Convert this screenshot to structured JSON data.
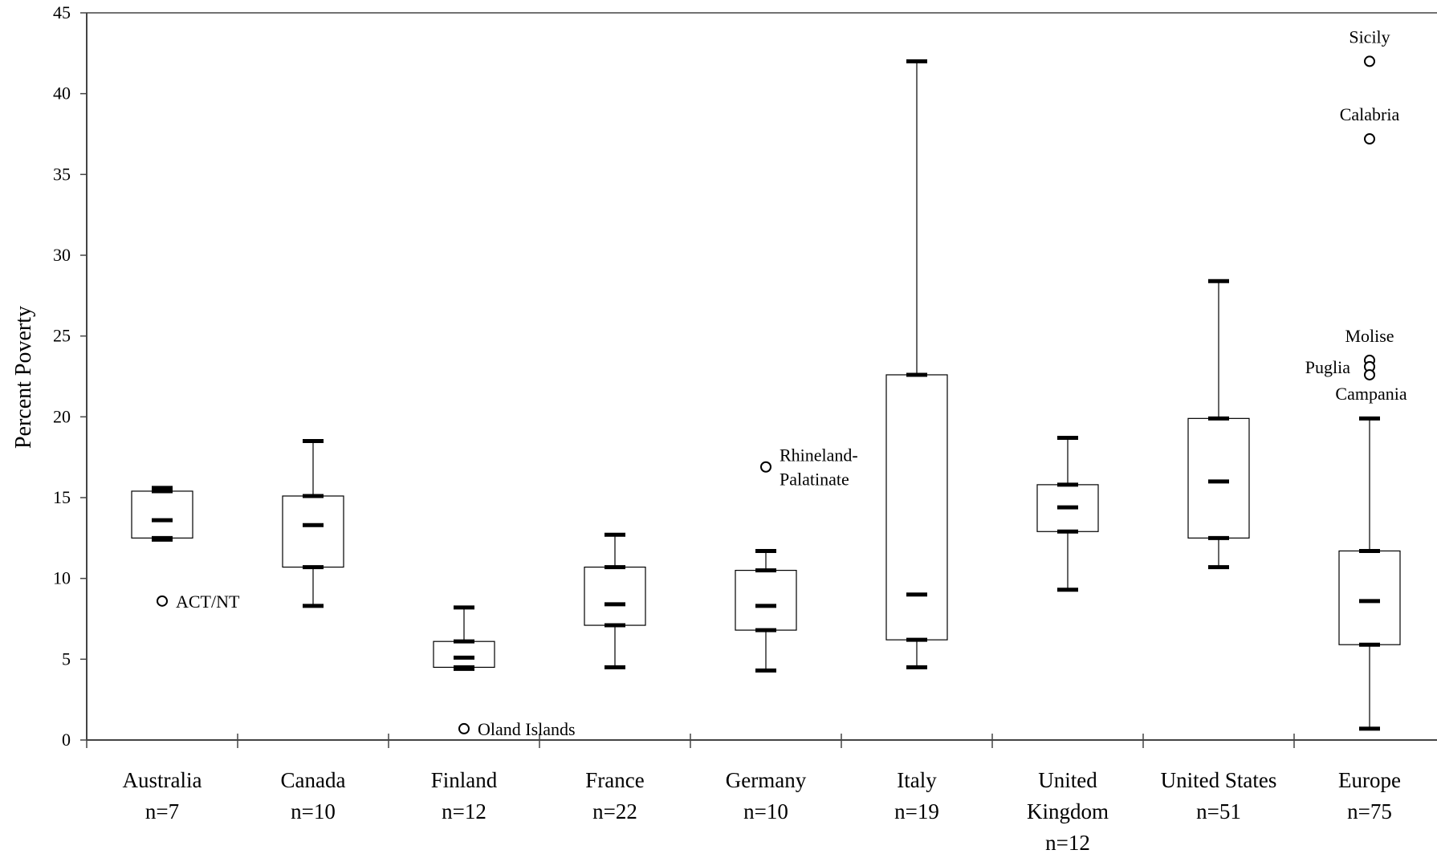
{
  "chart_data": {
    "type": "boxplot",
    "xlabel": "",
    "ylabel": "Percent Poverty",
    "ylim": [
      0,
      45
    ],
    "yticks": [
      "0",
      "5",
      "10",
      "15",
      "20",
      "25",
      "30",
      "35",
      "40",
      "45"
    ],
    "grid": false,
    "legend": "none",
    "categories": [
      {
        "lines": [
          "Australia",
          "n=7"
        ],
        "min": 12.4,
        "q1": 12.5,
        "median": 13.6,
        "q3": 15.4,
        "max": 15.6
      },
      {
        "lines": [
          "Canada",
          "n=10"
        ],
        "min": 8.3,
        "q1": 10.7,
        "median": 13.3,
        "q3": 15.1,
        "max": 18.5
      },
      {
        "lines": [
          "Finland",
          "n=12"
        ],
        "min": 4.4,
        "q1": 4.5,
        "median": 5.1,
        "q3": 6.1,
        "max": 8.2
      },
      {
        "lines": [
          "France",
          "n=22"
        ],
        "min": 4.5,
        "q1": 7.1,
        "median": 8.4,
        "q3": 10.7,
        "max": 12.7
      },
      {
        "lines": [
          "Germany",
          "n=10"
        ],
        "min": 4.3,
        "q1": 6.8,
        "median": 8.3,
        "q3": 10.5,
        "max": 11.7
      },
      {
        "lines": [
          "Italy",
          "n=19"
        ],
        "min": 4.5,
        "q1": 6.2,
        "median": 9.0,
        "q3": 22.6,
        "max": 42.0
      },
      {
        "lines": [
          "United",
          "Kingdom",
          "n=12"
        ],
        "min": 9.3,
        "q1": 12.9,
        "median": 14.4,
        "q3": 15.8,
        "max": 18.7
      },
      {
        "lines": [
          "United States",
          "n=51"
        ],
        "min": 10.7,
        "q1": 12.5,
        "median": 16.0,
        "q3": 19.9,
        "max": 28.4
      },
      {
        "lines": [
          "Europe",
          "n=75"
        ],
        "min": 0.7,
        "q1": 5.9,
        "median": 8.6,
        "q3": 11.7,
        "max": 19.9
      }
    ],
    "outliers": [
      {
        "category": 0,
        "y": 8.6,
        "label": [
          "ACT/NT"
        ],
        "label_pos": "right"
      },
      {
        "category": 2,
        "y": 0.7,
        "label": [
          "Oland Islands"
        ],
        "label_pos": "right"
      },
      {
        "category": 4,
        "y": 16.9,
        "label": [
          "Rhineland-",
          "Palatinate"
        ],
        "label_pos": "right"
      },
      {
        "category": 8,
        "y": 42.0,
        "label": [
          "Sicily"
        ],
        "label_pos": "above"
      },
      {
        "category": 8,
        "y": 37.2,
        "label": [
          "Calabria"
        ],
        "label_pos": "above"
      },
      {
        "category": 8,
        "y": 23.5,
        "label": [
          "Molise"
        ],
        "label_pos": "above"
      },
      {
        "category": 8,
        "y": 23.1,
        "label": [
          "Puglia"
        ],
        "label_pos": "left"
      },
      {
        "category": 8,
        "y": 22.6,
        "label": [
          "Campania"
        ],
        "label_pos": "below"
      }
    ]
  }
}
